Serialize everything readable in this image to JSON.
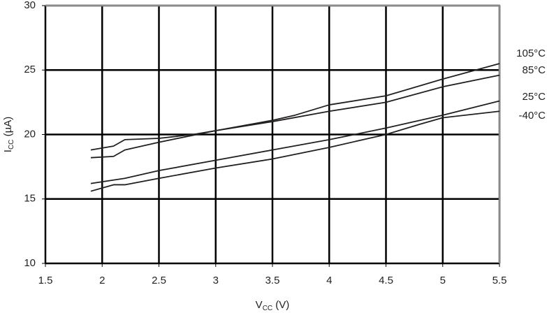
{
  "chart_data": {
    "type": "line",
    "xlabel": [
      "V",
      "CC",
      " (V)"
    ],
    "ylabel": [
      "I",
      "CC",
      " (µA)"
    ],
    "xlim": [
      1.5,
      5.5
    ],
    "xticks": [
      1.5,
      2,
      2.5,
      3,
      3.5,
      4,
      4.5,
      5,
      5.5
    ],
    "ylim": [
      10,
      30
    ],
    "yticks": [
      10,
      15,
      20,
      25,
      30
    ],
    "grid": true,
    "series": [
      {
        "name": "105°C",
        "color": "#231f20",
        "x": [
          1.9,
          2.1,
          2.2,
          2.5,
          2.8,
          3.0,
          3.5,
          3.7,
          4.0,
          4.5,
          5.0,
          5.5
        ],
        "values": [
          18.8,
          19.1,
          19.6,
          19.7,
          20.0,
          20.3,
          21.1,
          21.5,
          22.3,
          23.0,
          24.3,
          25.5
        ]
      },
      {
        "name": "85°C",
        "color": "#231f20",
        "x": [
          1.9,
          2.1,
          2.2,
          2.5,
          3.0,
          3.5,
          4.0,
          4.5,
          5.0,
          5.5
        ],
        "values": [
          18.2,
          18.3,
          18.8,
          19.4,
          20.3,
          21.0,
          21.8,
          22.5,
          23.7,
          24.6
        ]
      },
      {
        "name": "25°C",
        "color": "#231f20",
        "x": [
          1.9,
          2.2,
          2.5,
          3.0,
          3.5,
          4.0,
          4.5,
          5.0,
          5.5
        ],
        "values": [
          16.2,
          16.6,
          17.2,
          18.0,
          18.8,
          19.6,
          20.5,
          21.5,
          22.6
        ]
      },
      {
        "name": "-40°C",
        "color": "#231f20",
        "x": [
          1.9,
          2.1,
          2.2,
          2.5,
          3.0,
          3.5,
          4.0,
          4.5,
          4.8,
          5.0,
          5.5
        ],
        "values": [
          15.6,
          16.1,
          16.1,
          16.6,
          17.4,
          18.1,
          19.0,
          20.0,
          20.8,
          21.3,
          21.8
        ]
      }
    ]
  }
}
